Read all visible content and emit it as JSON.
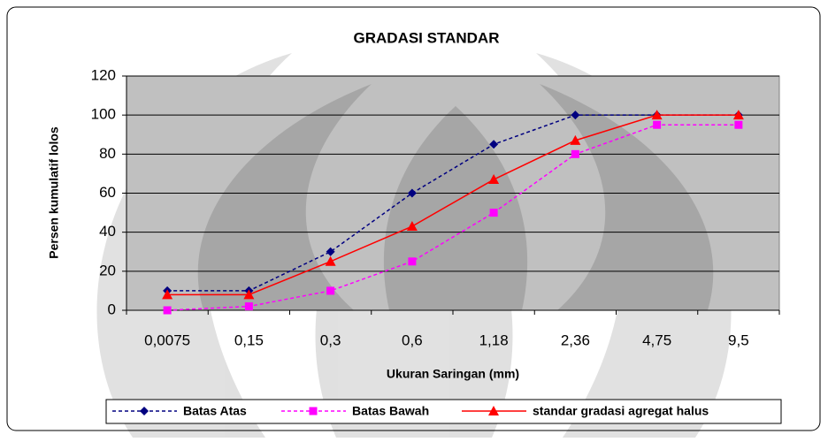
{
  "chart_data": {
    "type": "line",
    "title": "GRADASI STANDAR",
    "x_label": "Ukuran Saringan (mm)",
    "y_label": "Persen kumulatif lolos",
    "categories": [
      "0,0075",
      "0,15",
      "0,3",
      "0,6",
      "1,18",
      "2,36",
      "4,75",
      "9,5"
    ],
    "series": [
      {
        "name": "Batas Atas",
        "color": "#000080",
        "marker": "diamond",
        "dashed": true,
        "values": [
          10,
          10,
          30,
          60,
          85,
          100,
          100,
          100
        ]
      },
      {
        "name": "Batas Bawah",
        "color": "#ff00ff",
        "marker": "square",
        "dashed": true,
        "values": [
          0,
          2,
          10,
          25,
          50,
          80,
          95,
          95
        ]
      },
      {
        "name": "standar gradasi agregat halus",
        "color": "#ff0000",
        "marker": "triangle",
        "dashed": false,
        "values": [
          8,
          8,
          25,
          43,
          67,
          87,
          100,
          100
        ]
      }
    ],
    "ylim": [
      0,
      120
    ],
    "yticks": [
      0,
      20,
      40,
      60,
      80,
      100,
      120
    ],
    "grid": true,
    "legend": "bottom"
  }
}
